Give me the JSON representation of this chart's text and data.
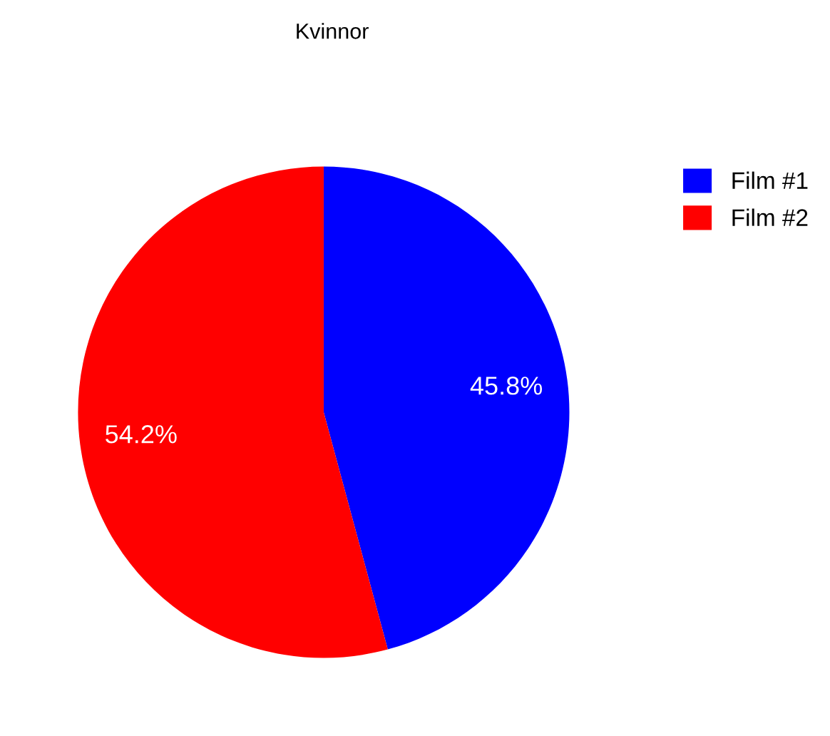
{
  "chart_data": {
    "type": "pie",
    "title": "Kvinnor",
    "categories": [
      "Film #1",
      "Film #2"
    ],
    "values": [
      45.8,
      54.2
    ],
    "colors": [
      "#0000ff",
      "#ff0000"
    ],
    "value_labels": [
      "45.8%",
      "54.2%"
    ],
    "legend": "top right"
  }
}
